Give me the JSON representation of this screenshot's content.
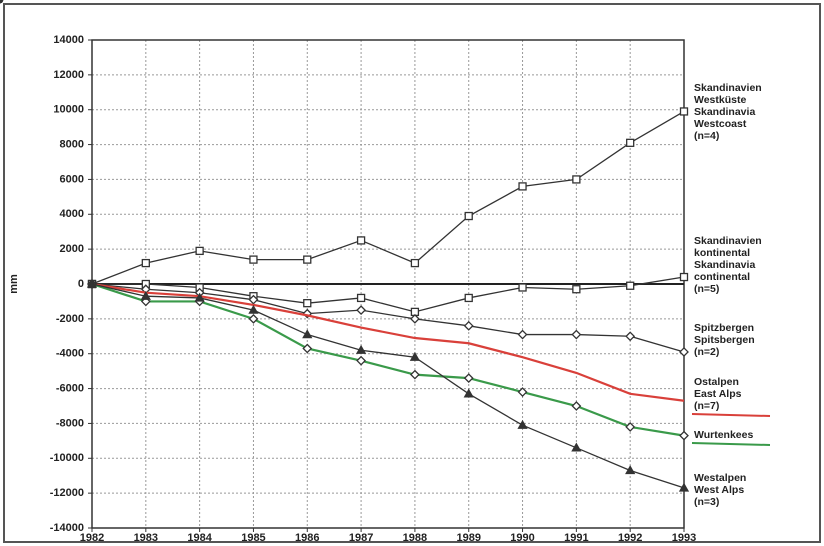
{
  "chart_data": {
    "type": "line",
    "y_label": "mm",
    "x": [
      1982,
      1983,
      1984,
      1985,
      1986,
      1987,
      1988,
      1989,
      1990,
      1991,
      1992,
      1993
    ],
    "xlim": [
      1982,
      1993
    ],
    "xticks": [
      1982,
      1983,
      1984,
      1985,
      1986,
      1987,
      1988,
      1989,
      1990,
      1991,
      1992,
      1993
    ],
    "ylim": [
      -14000,
      14000
    ],
    "yticks": [
      -14000,
      -12000,
      -10000,
      -8000,
      -6000,
      -4000,
      -2000,
      0,
      2000,
      4000,
      6000,
      8000,
      10000,
      12000,
      14000
    ],
    "grid": true,
    "series": [
      {
        "name": "Skandinavien\nWestküste\nSkandinavia\nWestcoast\n(n=4)",
        "color": "#333333",
        "marker": "square",
        "values": [
          0,
          1200,
          1900,
          1400,
          1400,
          2500,
          1200,
          3900,
          5600,
          6000,
          8100,
          9900
        ]
      },
      {
        "name": "Skandinavien\nkontinental\nSkandinavia\ncontinental\n(n=5)",
        "color": "#333333",
        "marker": "square",
        "values": [
          0,
          0,
          -200,
          -700,
          -1100,
          -800,
          -1600,
          -800,
          -200,
          -300,
          -100,
          400
        ]
      },
      {
        "name": "Spitzbergen\nSpitsbergen\n(n=2)",
        "color": "#333333",
        "marker": "diamond",
        "values": [
          0,
          -300,
          -500,
          -900,
          -1700,
          -1500,
          -2000,
          -2400,
          -2900,
          -2900,
          -3000,
          -3900
        ]
      },
      {
        "name": "Ostalpen\nEast Alps\n(n=7)",
        "color": "#d9403a",
        "marker": "dot",
        "values": [
          0,
          -500,
          -700,
          -1200,
          -1800,
          -2500,
          -3100,
          -3400,
          -4200,
          -5100,
          -6300,
          -6700
        ]
      },
      {
        "name": "Wurtenkees",
        "color": "#3a9a4a",
        "marker": "diamond",
        "values": [
          0,
          -1000,
          -1000,
          -2000,
          -3700,
          -4400,
          -5200,
          -5400,
          -6200,
          -7000,
          -8200,
          -8700
        ]
      },
      {
        "name": "Westalpen\nWest Alps\n(n=3)",
        "color": "#333333",
        "marker": "triangle",
        "values": [
          0,
          -700,
          -800,
          -1500,
          -2900,
          -3800,
          -4200,
          -6300,
          -8100,
          -9400,
          -10700,
          -11700
        ]
      }
    ]
  }
}
